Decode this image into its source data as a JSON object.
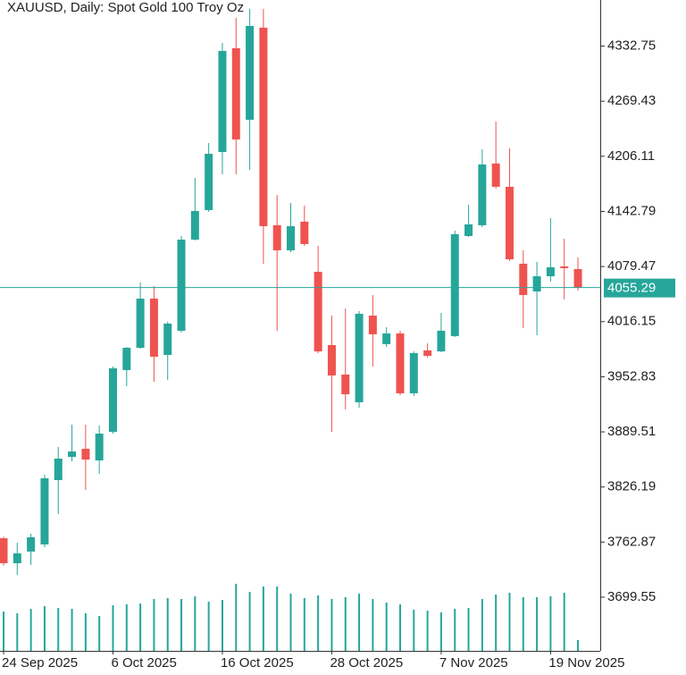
{
  "chart_data": {
    "type": "candlestick",
    "title": "XAUUSD, Daily:  Spot Gold 100 Troy Oz",
    "categories": [
      "24 Sep 2025",
      null,
      null,
      null,
      null,
      null,
      null,
      null,
      "6 Oct 2025",
      null,
      null,
      null,
      null,
      null,
      null,
      null,
      "16 Oct 2025",
      null,
      null,
      null,
      null,
      null,
      null,
      null,
      "28 Oct 2025",
      null,
      null,
      null,
      null,
      null,
      null,
      null,
      "7 Nov 2025",
      null,
      null,
      null,
      null,
      null,
      null,
      null,
      "19 Nov 2025",
      null,
      null
    ],
    "open": [
      3767.3,
      3738.6,
      3752.0,
      3760.2,
      3834.1,
      3860.8,
      3870.1,
      3856.7,
      3889.6,
      3960.5,
      3986.1,
      4042.6,
      3977.9,
      4005.7,
      4110.4,
      4144.3,
      4211.1,
      4330.3,
      4248.1,
      4353.9,
      4126.9,
      4098.1,
      4131.0,
      4073.4,
      3989.2,
      3955.3,
      3923.5,
      4023.1,
      3990.3,
      4002.6,
      3933.8,
      3983.1,
      3982.0,
      3999.5,
      4114.5,
      4126.9,
      4197.8,
      4171.1,
      4082.7,
      4050.8,
      4068.3,
      4079.6,
      4076.5
    ],
    "high": [
      3769.0,
      3762.2,
      3772.5,
      3840.3,
      3872.1,
      3897.8,
      3897.8,
      3896.8,
      3964.6,
      3987.2,
      4061.1,
      4057.0,
      4016.0,
      4114.6,
      4181.3,
      4221.4,
      4336.4,
      4365.2,
      4375.5,
      4375.5,
      4161.8,
      4152.5,
      4149.4,
      4103.2,
      4023.1,
      4031.3,
      4028.3,
      4046.7,
      4009.8,
      4005.7,
      3982.0,
      3991.3,
      4026.2,
      4120.7,
      4150.5,
      4214.2,
      4246.0,
      4215.2,
      4098.1,
      4084.8,
      4135.1,
      4111.5,
      4089.9
    ],
    "low": [
      3736.0,
      3725.2,
      3736.5,
      3757.0,
      3795.0,
      3855.7,
      3822.8,
      3841.3,
      3887.5,
      3942.0,
      3985.1,
      3947.1,
      3949.2,
      4003.6,
      4109.4,
      4142.3,
      4185.4,
      4185.4,
      4190.5,
      4082.7,
      4005.7,
      4096.0,
      4103.2,
      3980.0,
      3889.6,
      3915.3,
      3917.3,
      3964.6,
      3987.2,
      3931.7,
      3930.7,
      3974.8,
      3981.0,
      3998.5,
      4113.5,
      4124.8,
      4169.0,
      4085.8,
      4008.7,
      4000.5,
      4062.2,
      4041.8,
      4051.9
    ],
    "close": [
      3738.6,
      3749.9,
      3768.4,
      3836.2,
      3858.8,
      3867.0,
      3857.7,
      3887.5,
      3962.5,
      3986.1,
      4042.6,
      3975.9,
      4013.9,
      4110.4,
      4143.3,
      4209.0,
      4327.2,
      4225.5,
      4355.9,
      4125.8,
      4098.1,
      4125.8,
      4105.3,
      3982.0,
      3954.3,
      3932.7,
      4025.2,
      4001.6,
      4002.6,
      3933.8,
      3980.0,
      3976.9,
      4005.7,
      4116.6,
      4127.9,
      4196.7,
      4171.1,
      4087.8,
      4046.7,
      4068.3,
      4078.6,
      4077.6,
      4055.29
    ],
    "volume": [
      44,
      42,
      47,
      50,
      48,
      47,
      42,
      39,
      51,
      52,
      53,
      58,
      59,
      58,
      61,
      55,
      57,
      75,
      66,
      72,
      72,
      64,
      59,
      62,
      58,
      60,
      64,
      58,
      54,
      52,
      46,
      45,
      43,
      47,
      48,
      58,
      63,
      65,
      60,
      60,
      61,
      65,
      12
    ],
    "up_color": "#26a69a",
    "down_color": "#ef5350",
    "last_price": 4055.29,
    "ylim": [
      3637.9,
      4385.7
    ],
    "yticks": [
      3699.55,
      3762.87,
      3826.19,
      3889.51,
      3952.83,
      4016.15,
      4079.47,
      4142.79,
      4206.11,
      4269.43,
      4332.75
    ]
  }
}
